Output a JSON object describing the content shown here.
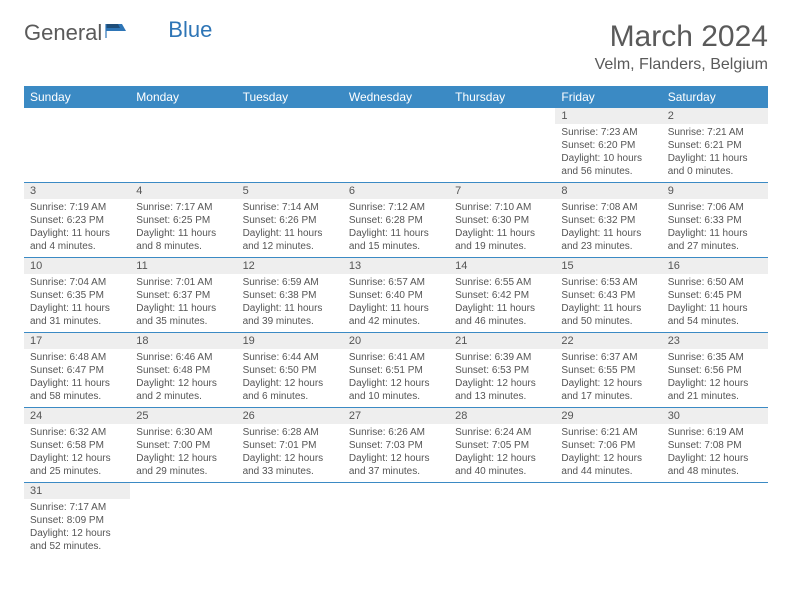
{
  "logo": {
    "text1": "General",
    "text2": "Blue"
  },
  "header": {
    "month": "March 2024",
    "location": "Velm, Flanders, Belgium"
  },
  "colors": {
    "header_bg": "#3b8ac4",
    "header_fg": "#ffffff",
    "daynum_bg": "#eeeeee",
    "row_border": "#3b8ac4",
    "text": "#555555",
    "logo_general": "#5a5a5a",
    "logo_blue": "#2e75b6",
    "background": "#ffffff"
  },
  "fonts": {
    "title_size": 30,
    "location_size": 16,
    "weekday_size": 12,
    "daynum_size": 11,
    "body_size": 10
  },
  "weekdays": [
    "Sunday",
    "Monday",
    "Tuesday",
    "Wednesday",
    "Thursday",
    "Friday",
    "Saturday"
  ],
  "weeks": [
    [
      null,
      null,
      null,
      null,
      null,
      {
        "n": "1",
        "sr": "Sunrise: 7:23 AM",
        "ss": "Sunset: 6:20 PM",
        "dl1": "Daylight: 10 hours",
        "dl2": "and 56 minutes."
      },
      {
        "n": "2",
        "sr": "Sunrise: 7:21 AM",
        "ss": "Sunset: 6:21 PM",
        "dl1": "Daylight: 11 hours",
        "dl2": "and 0 minutes."
      }
    ],
    [
      {
        "n": "3",
        "sr": "Sunrise: 7:19 AM",
        "ss": "Sunset: 6:23 PM",
        "dl1": "Daylight: 11 hours",
        "dl2": "and 4 minutes."
      },
      {
        "n": "4",
        "sr": "Sunrise: 7:17 AM",
        "ss": "Sunset: 6:25 PM",
        "dl1": "Daylight: 11 hours",
        "dl2": "and 8 minutes."
      },
      {
        "n": "5",
        "sr": "Sunrise: 7:14 AM",
        "ss": "Sunset: 6:26 PM",
        "dl1": "Daylight: 11 hours",
        "dl2": "and 12 minutes."
      },
      {
        "n": "6",
        "sr": "Sunrise: 7:12 AM",
        "ss": "Sunset: 6:28 PM",
        "dl1": "Daylight: 11 hours",
        "dl2": "and 15 minutes."
      },
      {
        "n": "7",
        "sr": "Sunrise: 7:10 AM",
        "ss": "Sunset: 6:30 PM",
        "dl1": "Daylight: 11 hours",
        "dl2": "and 19 minutes."
      },
      {
        "n": "8",
        "sr": "Sunrise: 7:08 AM",
        "ss": "Sunset: 6:32 PM",
        "dl1": "Daylight: 11 hours",
        "dl2": "and 23 minutes."
      },
      {
        "n": "9",
        "sr": "Sunrise: 7:06 AM",
        "ss": "Sunset: 6:33 PM",
        "dl1": "Daylight: 11 hours",
        "dl2": "and 27 minutes."
      }
    ],
    [
      {
        "n": "10",
        "sr": "Sunrise: 7:04 AM",
        "ss": "Sunset: 6:35 PM",
        "dl1": "Daylight: 11 hours",
        "dl2": "and 31 minutes."
      },
      {
        "n": "11",
        "sr": "Sunrise: 7:01 AM",
        "ss": "Sunset: 6:37 PM",
        "dl1": "Daylight: 11 hours",
        "dl2": "and 35 minutes."
      },
      {
        "n": "12",
        "sr": "Sunrise: 6:59 AM",
        "ss": "Sunset: 6:38 PM",
        "dl1": "Daylight: 11 hours",
        "dl2": "and 39 minutes."
      },
      {
        "n": "13",
        "sr": "Sunrise: 6:57 AM",
        "ss": "Sunset: 6:40 PM",
        "dl1": "Daylight: 11 hours",
        "dl2": "and 42 minutes."
      },
      {
        "n": "14",
        "sr": "Sunrise: 6:55 AM",
        "ss": "Sunset: 6:42 PM",
        "dl1": "Daylight: 11 hours",
        "dl2": "and 46 minutes."
      },
      {
        "n": "15",
        "sr": "Sunrise: 6:53 AM",
        "ss": "Sunset: 6:43 PM",
        "dl1": "Daylight: 11 hours",
        "dl2": "and 50 minutes."
      },
      {
        "n": "16",
        "sr": "Sunrise: 6:50 AM",
        "ss": "Sunset: 6:45 PM",
        "dl1": "Daylight: 11 hours",
        "dl2": "and 54 minutes."
      }
    ],
    [
      {
        "n": "17",
        "sr": "Sunrise: 6:48 AM",
        "ss": "Sunset: 6:47 PM",
        "dl1": "Daylight: 11 hours",
        "dl2": "and 58 minutes."
      },
      {
        "n": "18",
        "sr": "Sunrise: 6:46 AM",
        "ss": "Sunset: 6:48 PM",
        "dl1": "Daylight: 12 hours",
        "dl2": "and 2 minutes."
      },
      {
        "n": "19",
        "sr": "Sunrise: 6:44 AM",
        "ss": "Sunset: 6:50 PM",
        "dl1": "Daylight: 12 hours",
        "dl2": "and 6 minutes."
      },
      {
        "n": "20",
        "sr": "Sunrise: 6:41 AM",
        "ss": "Sunset: 6:51 PM",
        "dl1": "Daylight: 12 hours",
        "dl2": "and 10 minutes."
      },
      {
        "n": "21",
        "sr": "Sunrise: 6:39 AM",
        "ss": "Sunset: 6:53 PM",
        "dl1": "Daylight: 12 hours",
        "dl2": "and 13 minutes."
      },
      {
        "n": "22",
        "sr": "Sunrise: 6:37 AM",
        "ss": "Sunset: 6:55 PM",
        "dl1": "Daylight: 12 hours",
        "dl2": "and 17 minutes."
      },
      {
        "n": "23",
        "sr": "Sunrise: 6:35 AM",
        "ss": "Sunset: 6:56 PM",
        "dl1": "Daylight: 12 hours",
        "dl2": "and 21 minutes."
      }
    ],
    [
      {
        "n": "24",
        "sr": "Sunrise: 6:32 AM",
        "ss": "Sunset: 6:58 PM",
        "dl1": "Daylight: 12 hours",
        "dl2": "and 25 minutes."
      },
      {
        "n": "25",
        "sr": "Sunrise: 6:30 AM",
        "ss": "Sunset: 7:00 PM",
        "dl1": "Daylight: 12 hours",
        "dl2": "and 29 minutes."
      },
      {
        "n": "26",
        "sr": "Sunrise: 6:28 AM",
        "ss": "Sunset: 7:01 PM",
        "dl1": "Daylight: 12 hours",
        "dl2": "and 33 minutes."
      },
      {
        "n": "27",
        "sr": "Sunrise: 6:26 AM",
        "ss": "Sunset: 7:03 PM",
        "dl1": "Daylight: 12 hours",
        "dl2": "and 37 minutes."
      },
      {
        "n": "28",
        "sr": "Sunrise: 6:24 AM",
        "ss": "Sunset: 7:05 PM",
        "dl1": "Daylight: 12 hours",
        "dl2": "and 40 minutes."
      },
      {
        "n": "29",
        "sr": "Sunrise: 6:21 AM",
        "ss": "Sunset: 7:06 PM",
        "dl1": "Daylight: 12 hours",
        "dl2": "and 44 minutes."
      },
      {
        "n": "30",
        "sr": "Sunrise: 6:19 AM",
        "ss": "Sunset: 7:08 PM",
        "dl1": "Daylight: 12 hours",
        "dl2": "and 48 minutes."
      }
    ],
    [
      {
        "n": "31",
        "sr": "Sunrise: 7:17 AM",
        "ss": "Sunset: 8:09 PM",
        "dl1": "Daylight: 12 hours",
        "dl2": "and 52 minutes."
      },
      null,
      null,
      null,
      null,
      null,
      null
    ]
  ]
}
